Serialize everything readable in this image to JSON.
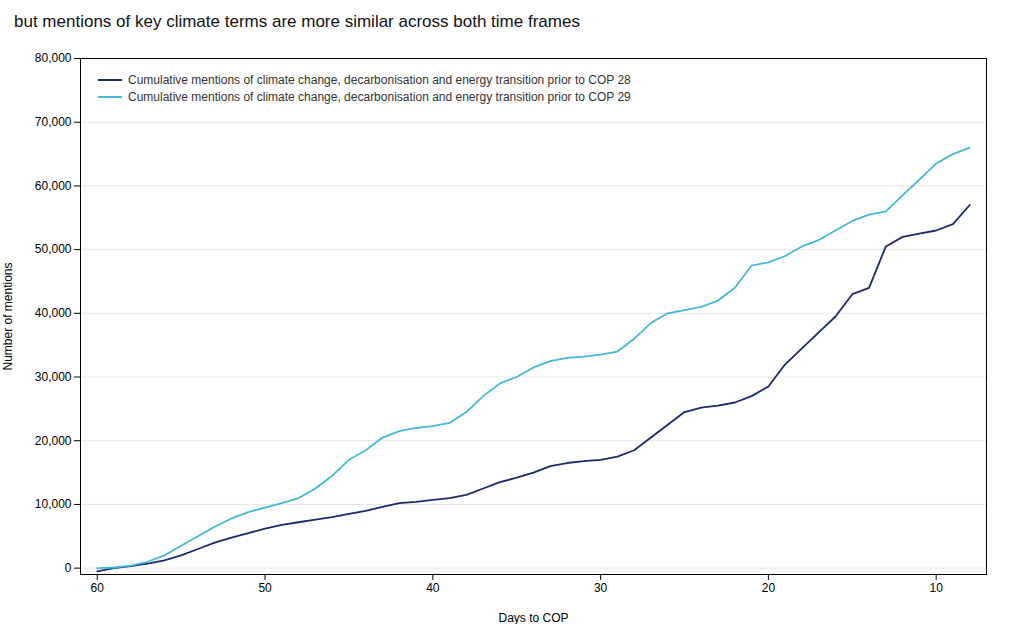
{
  "chart_data": {
    "type": "line",
    "title": "but mentions of key climate terms are more similar across both time frames",
    "xlabel": "Days to COP",
    "ylabel": "Number of mentions",
    "x": [
      60,
      59,
      58,
      57,
      56,
      55,
      54,
      53,
      52,
      51,
      50,
      49,
      48,
      47,
      46,
      45,
      44,
      43,
      42,
      41,
      40,
      39,
      38,
      37,
      36,
      35,
      34,
      33,
      32,
      31,
      30,
      29,
      28,
      27,
      26,
      25,
      24,
      23,
      22,
      21,
      20,
      19,
      18,
      17,
      16,
      15,
      14,
      13,
      12,
      11,
      10,
      9,
      8
    ],
    "series": [
      {
        "name": "Cumulative mentions of climate change, decarbonisation and energy transition prior to COP 28",
        "color": "#1b2a6b",
        "values": [
          -500,
          0,
          300,
          700,
          1200,
          2000,
          3000,
          4000,
          4800,
          5500,
          6200,
          6800,
          7200,
          7600,
          8000,
          8500,
          9000,
          9600,
          10200,
          10400,
          10700,
          11000,
          11500,
          12500,
          13500,
          14200,
          15000,
          16000,
          16500,
          16800,
          17000,
          17500,
          18500,
          20500,
          22500,
          24500,
          25200,
          25500,
          26000,
          27000,
          28500,
          32000,
          34500,
          37000,
          39500,
          43000,
          44000,
          50500,
          52000,
          52500,
          53000,
          54000,
          57000
        ]
      },
      {
        "name": "Cumulative mentions of climate change, decarbonisation and energy transition prior to COP 29",
        "color": "#45b8d8",
        "values": [
          0,
          100,
          400,
          1000,
          2000,
          3500,
          5000,
          6500,
          7800,
          8800,
          9500,
          10200,
          11000,
          12500,
          14500,
          17000,
          18500,
          20500,
          21500,
          22000,
          22300,
          22800,
          24500,
          27000,
          29000,
          30000,
          31500,
          32500,
          33000,
          33200,
          33500,
          34000,
          36000,
          38500,
          40000,
          40500,
          41000,
          42000,
          44000,
          47500,
          48000,
          49000,
          50500,
          51500,
          53000,
          54500,
          55500,
          56000,
          58500,
          61000,
          63500,
          65000,
          66000
        ]
      }
    ],
    "xlim": [
      61,
      7
    ],
    "ylim": [
      -1000,
      80000
    ],
    "xticks": [
      60,
      50,
      40,
      30,
      20,
      10
    ],
    "yticks": [
      0,
      {
        "value": 10000,
        "label": "10,000"
      },
      {
        "value": 20000,
        "label": "20,000"
      },
      {
        "value": 30000,
        "label": "30,000"
      },
      {
        "value": 40000,
        "label": "40,000"
      },
      {
        "value": 50000,
        "label": "50,000"
      },
      {
        "value": 60000,
        "label": "60,000"
      },
      {
        "value": 70000,
        "label": "70,000"
      },
      {
        "value": 80000,
        "label": "80,000"
      }
    ],
    "grid": true,
    "legend": "upper left"
  }
}
